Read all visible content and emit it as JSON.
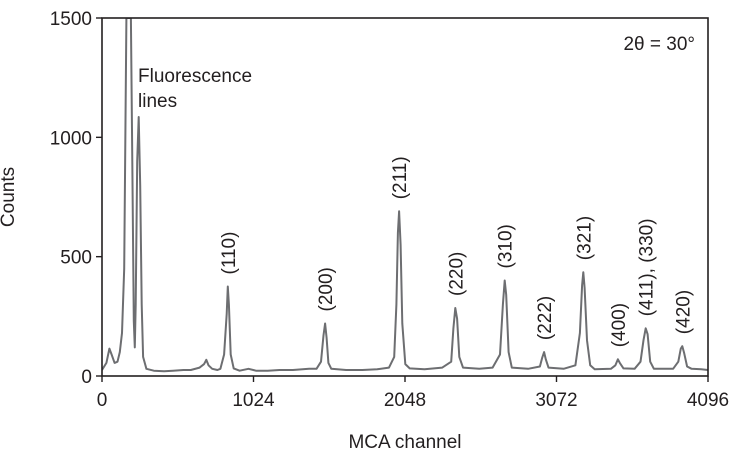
{
  "chart_data": {
    "type": "line",
    "title": "",
    "xlabel": "MCA channel",
    "ylabel": "Counts",
    "xlim": [
      0,
      4096
    ],
    "ylim": [
      0,
      1500
    ],
    "x_ticks": [
      0,
      1024,
      2048,
      3072,
      4096
    ],
    "y_ticks": [
      0,
      500,
      1000,
      1500
    ],
    "grid": false,
    "legend": "none",
    "line_color": "#6d6e71",
    "axis_color": "#231f20",
    "annotation": "2θ = 30°",
    "fluorescence_label": [
      "Fluorescence",
      "lines"
    ],
    "series": [
      {
        "values": [
          [
            0,
            25
          ],
          [
            30,
            55
          ],
          [
            50,
            115
          ],
          [
            65,
            90
          ],
          [
            85,
            55
          ],
          [
            105,
            60
          ],
          [
            120,
            100
          ],
          [
            135,
            180
          ],
          [
            150,
            450
          ],
          [
            165,
            1500
          ],
          [
            180,
            1500
          ],
          [
            195,
            1500
          ],
          [
            205,
            900
          ],
          [
            215,
            230
          ],
          [
            222,
            120
          ],
          [
            228,
            300
          ],
          [
            238,
            900
          ],
          [
            248,
            1085
          ],
          [
            258,
            800
          ],
          [
            268,
            300
          ],
          [
            278,
            80
          ],
          [
            300,
            30
          ],
          [
            350,
            22
          ],
          [
            420,
            20
          ],
          [
            480,
            22
          ],
          [
            550,
            25
          ],
          [
            600,
            25
          ],
          [
            660,
            35
          ],
          [
            690,
            50
          ],
          [
            705,
            68
          ],
          [
            720,
            45
          ],
          [
            745,
            30
          ],
          [
            780,
            25
          ],
          [
            800,
            30
          ],
          [
            825,
            90
          ],
          [
            843,
            260
          ],
          [
            850,
            375
          ],
          [
            858,
            300
          ],
          [
            870,
            90
          ],
          [
            890,
            32
          ],
          [
            930,
            22
          ],
          [
            990,
            30
          ],
          [
            1040,
            22
          ],
          [
            1120,
            22
          ],
          [
            1200,
            25
          ],
          [
            1290,
            25
          ],
          [
            1400,
            30
          ],
          [
            1450,
            30
          ],
          [
            1480,
            60
          ],
          [
            1497,
            170
          ],
          [
            1508,
            220
          ],
          [
            1518,
            160
          ],
          [
            1530,
            55
          ],
          [
            1550,
            30
          ],
          [
            1650,
            25
          ],
          [
            1760,
            25
          ],
          [
            1860,
            28
          ],
          [
            1940,
            35
          ],
          [
            1975,
            80
          ],
          [
            1990,
            300
          ],
          [
            2000,
            600
          ],
          [
            2008,
            690
          ],
          [
            2018,
            550
          ],
          [
            2030,
            220
          ],
          [
            2050,
            50
          ],
          [
            2080,
            32
          ],
          [
            2180,
            28
          ],
          [
            2300,
            35
          ],
          [
            2360,
            60
          ],
          [
            2375,
            200
          ],
          [
            2388,
            285
          ],
          [
            2400,
            240
          ],
          [
            2415,
            80
          ],
          [
            2440,
            35
          ],
          [
            2550,
            30
          ],
          [
            2640,
            35
          ],
          [
            2690,
            90
          ],
          [
            2710,
            300
          ],
          [
            2722,
            400
          ],
          [
            2732,
            340
          ],
          [
            2748,
            100
          ],
          [
            2770,
            35
          ],
          [
            2880,
            30
          ],
          [
            2960,
            40
          ],
          [
            2975,
            75
          ],
          [
            2988,
            100
          ],
          [
            3000,
            70
          ],
          [
            3018,
            35
          ],
          [
            3120,
            30
          ],
          [
            3200,
            45
          ],
          [
            3230,
            180
          ],
          [
            3245,
            380
          ],
          [
            3253,
            435
          ],
          [
            3262,
            370
          ],
          [
            3278,
            150
          ],
          [
            3300,
            45
          ],
          [
            3330,
            28
          ],
          [
            3440,
            30
          ],
          [
            3470,
            45
          ],
          [
            3487,
            70
          ],
          [
            3500,
            55
          ],
          [
            3525,
            32
          ],
          [
            3600,
            30
          ],
          [
            3640,
            60
          ],
          [
            3660,
            150
          ],
          [
            3675,
            200
          ],
          [
            3688,
            175
          ],
          [
            3705,
            60
          ],
          [
            3730,
            30
          ],
          [
            3860,
            30
          ],
          [
            3895,
            60
          ],
          [
            3912,
            115
          ],
          [
            3922,
            125
          ],
          [
            3935,
            95
          ],
          [
            3955,
            40
          ],
          [
            3985,
            30
          ],
          [
            4050,
            28
          ],
          [
            4096,
            25
          ]
        ]
      }
    ],
    "peak_labels": [
      {
        "text": "(110)",
        "x": 852,
        "y": 375
      },
      {
        "text": "(200)",
        "x": 1508,
        "y": 220
      },
      {
        "text": "(211)",
        "x": 2008,
        "y": 690
      },
      {
        "text": "(220)",
        "x": 2388,
        "y": 285
      },
      {
        "text": "(310)",
        "x": 2722,
        "y": 400
      },
      {
        "text": "(222)",
        "x": 2988,
        "y": 100
      },
      {
        "text": "(321)",
        "x": 3253,
        "y": 435
      },
      {
        "text": "(400)",
        "x": 3487,
        "y": 70
      },
      {
        "text": "(411), (330)",
        "x": 3675,
        "y": 200
      },
      {
        "text": "(420)",
        "x": 3922,
        "y": 125
      }
    ]
  }
}
